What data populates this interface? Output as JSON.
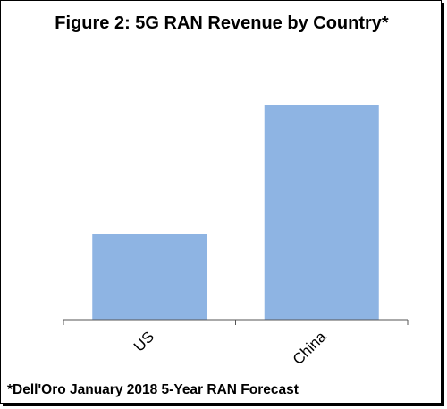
{
  "chart_data": {
    "type": "bar",
    "title": "Figure 2: 5G RAN Revenue by Country*",
    "categories": [
      "US",
      "China"
    ],
    "values": [
      32,
      80
    ],
    "ylim": [
      0,
      100
    ],
    "xlabel": "",
    "ylabel": "",
    "grid": false,
    "bar_color": "#8eb4e3",
    "annotation": "*Dell'Oro January 2018 5-Year RAN Forecast"
  }
}
